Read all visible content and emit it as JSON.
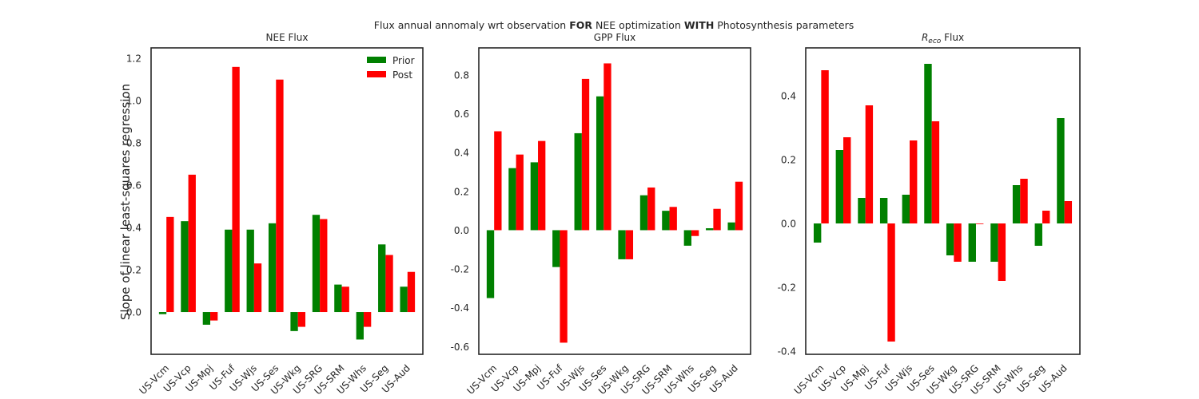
{
  "figure": {
    "suptitle_parts": [
      {
        "text": "Flux annual annomaly wrt observation ",
        "weight": "normal"
      },
      {
        "text": "FOR",
        "weight": "bold"
      },
      {
        "text": " NEE optimization ",
        "weight": "normal"
      },
      {
        "text": "WITH",
        "weight": "bold"
      },
      {
        "text": " Photosynthesis parameters",
        "weight": "normal"
      }
    ],
    "ylabel": "Slope of linear least-squares regression",
    "colors": {
      "prior": "#008000",
      "post": "#ff0000",
      "axes": "#262626"
    }
  },
  "chart_data": [
    {
      "type": "bar",
      "title": "NEE Flux",
      "categories": [
        "US-Vcm",
        "US-Vcp",
        "US-Mpj",
        "US-Fuf",
        "US-Wjs",
        "US-Ses",
        "US-Wkg",
        "US-SRG",
        "US-SRM",
        "US-Whs",
        "US-Seg",
        "US-Aud"
      ],
      "series": [
        {
          "name": "Prior",
          "values": [
            -0.01,
            0.43,
            -0.06,
            0.39,
            0.39,
            0.42,
            -0.09,
            0.46,
            0.13,
            -0.13,
            0.32,
            0.12
          ]
        },
        {
          "name": "Post",
          "values": [
            0.45,
            0.65,
            -0.04,
            1.16,
            0.23,
            1.1,
            -0.07,
            0.44,
            0.12,
            -0.07,
            0.27,
            0.19
          ]
        }
      ],
      "ylim": [
        -0.2,
        1.25
      ],
      "yticks": [
        "0.0",
        "0.2",
        "0.4",
        "0.6",
        "0.8",
        "1.0",
        "1.2"
      ],
      "legend": "top-right",
      "grid": false
    },
    {
      "type": "bar",
      "title": "GPP Flux",
      "categories": [
        "US-Vcm",
        "US-Vcp",
        "US-Mpj",
        "US-Fuf",
        "US-Wjs",
        "US-Ses",
        "US-Wkg",
        "US-SRG",
        "US-SRM",
        "US-Whs",
        "US-Seg",
        "US-Aud"
      ],
      "series": [
        {
          "name": "Prior",
          "values": [
            -0.35,
            0.32,
            0.35,
            -0.19,
            0.5,
            0.69,
            -0.15,
            0.18,
            0.1,
            -0.08,
            0.01,
            0.04
          ]
        },
        {
          "name": "Post",
          "values": [
            0.51,
            0.39,
            0.46,
            -0.58,
            0.78,
            0.86,
            -0.15,
            0.22,
            0.12,
            -0.03,
            0.11,
            0.25
          ]
        }
      ],
      "ylim": [
        -0.64,
        0.94
      ],
      "yticks": [
        "-0.6",
        "-0.4",
        "-0.2",
        "0.0",
        "0.2",
        "0.4",
        "0.6",
        "0.8"
      ],
      "grid": false
    },
    {
      "type": "bar",
      "title_main": "R",
      "title_sub": "eco",
      "title_rest": " Flux",
      "categories": [
        "US-Vcm",
        "US-Vcp",
        "US-Mpj",
        "US-Fuf",
        "US-Wjs",
        "US-Ses",
        "US-Wkg",
        "US-SRG",
        "US-SRM",
        "US-Whs",
        "US-Seg",
        "US-Aud"
      ],
      "series": [
        {
          "name": "Prior",
          "values": [
            -0.06,
            0.23,
            0.08,
            0.08,
            0.09,
            0.5,
            -0.1,
            -0.12,
            -0.12,
            0.12,
            -0.07,
            0.33
          ]
        },
        {
          "name": "Post",
          "values": [
            0.48,
            0.27,
            0.37,
            -0.37,
            0.26,
            0.32,
            -0.12,
            0.0,
            -0.18,
            0.14,
            0.04,
            0.07
          ]
        }
      ],
      "ylim": [
        -0.41,
        0.55
      ],
      "yticks": [
        "-0.4",
        "-0.2",
        "0.0",
        "0.2",
        "0.4"
      ],
      "grid": false
    }
  ]
}
